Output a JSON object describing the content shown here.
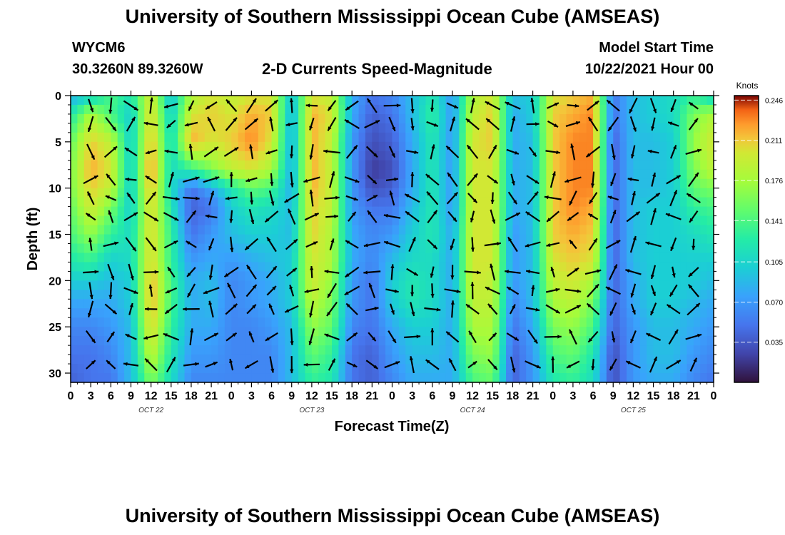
{
  "header": {
    "title": "University of Southern Mississippi Ocean Cube (AMSEAS)",
    "station_id": "WYCM6",
    "station_coords": "30.3260N  89.3260W",
    "chart_title": "2-D Currents Speed-Magnitude",
    "model_start_label": "Model Start Time",
    "model_start_value": "10/22/2021 Hour 00"
  },
  "footer": {
    "title": "University of Southern Mississippi Ocean Cube (AMSEAS)"
  },
  "chart_data": {
    "type": "heatmap",
    "title": "2-D Currents Speed-Magnitude",
    "xlabel": "Forecast Time(Z)",
    "ylabel": "Depth (ft)",
    "x_ticks": [
      "0",
      "3",
      "6",
      "9",
      "12",
      "15",
      "18",
      "21",
      "0",
      "3",
      "6",
      "9",
      "12",
      "15",
      "18",
      "21",
      "0",
      "3",
      "6",
      "9",
      "12",
      "15",
      "18",
      "21",
      "0",
      "3",
      "6",
      "9",
      "12",
      "15",
      "18",
      "21",
      "0"
    ],
    "date_labels": [
      "OCT 22",
      "OCT 23",
      "OCT 24",
      "OCT 25"
    ],
    "y_ticks": [
      "0",
      "5",
      "10",
      "15",
      "20",
      "25",
      "30"
    ],
    "ylim": [
      0,
      31
    ],
    "y_inverted": true,
    "x_range_hours": [
      0,
      96
    ],
    "colorbar": {
      "label": "Knots",
      "ticks": [
        "0.246",
        "0.211",
        "0.176",
        "0.141",
        "0.105",
        "0.070",
        "0.035"
      ],
      "range": [
        0.0,
        0.25
      ]
    },
    "depth_levels_ft": [
      0,
      2,
      5,
      8,
      10,
      12,
      15,
      18,
      20,
      22,
      25,
      28,
      31
    ],
    "time_hours": [
      0,
      3,
      6,
      9,
      12,
      15,
      18,
      21,
      24,
      27,
      30,
      33,
      36,
      39,
      42,
      45,
      48,
      51,
      54,
      57,
      60,
      63,
      66,
      69,
      72,
      75,
      78,
      81,
      84,
      87,
      90,
      93,
      96
    ],
    "speed_knots": [
      [
        0.08,
        0.1,
        0.14,
        0.12,
        0.2,
        0.09,
        0.18,
        0.2,
        0.19,
        0.2,
        0.2,
        0.09,
        0.2,
        0.19,
        0.08,
        0.05,
        0.06,
        0.09,
        0.12,
        0.07,
        0.18,
        0.2,
        0.09,
        0.1,
        0.2,
        0.21,
        0.22,
        0.05,
        0.09,
        0.1,
        0.11,
        0.13,
        0.1
      ],
      [
        0.12,
        0.18,
        0.14,
        0.1,
        0.21,
        0.1,
        0.2,
        0.21,
        0.2,
        0.22,
        0.21,
        0.08,
        0.22,
        0.2,
        0.08,
        0.04,
        0.05,
        0.09,
        0.13,
        0.07,
        0.19,
        0.21,
        0.08,
        0.1,
        0.21,
        0.22,
        0.23,
        0.05,
        0.09,
        0.1,
        0.11,
        0.16,
        0.18
      ],
      [
        0.15,
        0.21,
        0.19,
        0.1,
        0.22,
        0.11,
        0.22,
        0.2,
        0.21,
        0.23,
        0.2,
        0.08,
        0.22,
        0.19,
        0.07,
        0.03,
        0.04,
        0.08,
        0.12,
        0.07,
        0.2,
        0.21,
        0.08,
        0.09,
        0.21,
        0.23,
        0.23,
        0.04,
        0.09,
        0.09,
        0.1,
        0.17,
        0.2
      ],
      [
        0.16,
        0.22,
        0.2,
        0.1,
        0.23,
        0.11,
        0.13,
        0.16,
        0.19,
        0.2,
        0.18,
        0.08,
        0.22,
        0.19,
        0.07,
        0.02,
        0.03,
        0.08,
        0.12,
        0.07,
        0.2,
        0.2,
        0.08,
        0.09,
        0.21,
        0.23,
        0.23,
        0.04,
        0.09,
        0.09,
        0.1,
        0.16,
        0.19
      ],
      [
        0.16,
        0.21,
        0.19,
        0.1,
        0.22,
        0.11,
        0.05,
        0.08,
        0.12,
        0.15,
        0.14,
        0.08,
        0.22,
        0.19,
        0.07,
        0.03,
        0.04,
        0.08,
        0.12,
        0.07,
        0.2,
        0.2,
        0.08,
        0.09,
        0.21,
        0.23,
        0.23,
        0.04,
        0.09,
        0.09,
        0.1,
        0.15,
        0.16
      ],
      [
        0.15,
        0.2,
        0.16,
        0.1,
        0.21,
        0.12,
        0.04,
        0.05,
        0.1,
        0.12,
        0.11,
        0.09,
        0.21,
        0.19,
        0.07,
        0.05,
        0.05,
        0.09,
        0.12,
        0.07,
        0.2,
        0.2,
        0.08,
        0.09,
        0.21,
        0.23,
        0.22,
        0.04,
        0.09,
        0.1,
        0.1,
        0.13,
        0.14
      ],
      [
        0.14,
        0.17,
        0.13,
        0.11,
        0.21,
        0.13,
        0.05,
        0.07,
        0.09,
        0.1,
        0.1,
        0.09,
        0.21,
        0.18,
        0.08,
        0.06,
        0.07,
        0.1,
        0.12,
        0.08,
        0.2,
        0.2,
        0.07,
        0.09,
        0.21,
        0.22,
        0.21,
        0.04,
        0.09,
        0.1,
        0.1,
        0.11,
        0.12
      ],
      [
        0.12,
        0.13,
        0.1,
        0.11,
        0.21,
        0.13,
        0.07,
        0.08,
        0.07,
        0.08,
        0.09,
        0.1,
        0.2,
        0.18,
        0.08,
        0.06,
        0.09,
        0.11,
        0.11,
        0.08,
        0.2,
        0.2,
        0.07,
        0.09,
        0.2,
        0.21,
        0.2,
        0.04,
        0.09,
        0.1,
        0.1,
        0.1,
        0.1
      ],
      [
        0.1,
        0.1,
        0.09,
        0.1,
        0.22,
        0.14,
        0.08,
        0.09,
        0.06,
        0.07,
        0.08,
        0.1,
        0.2,
        0.17,
        0.07,
        0.05,
        0.1,
        0.12,
        0.11,
        0.08,
        0.2,
        0.19,
        0.07,
        0.09,
        0.19,
        0.2,
        0.18,
        0.04,
        0.08,
        0.1,
        0.1,
        0.1,
        0.09
      ],
      [
        0.08,
        0.08,
        0.08,
        0.1,
        0.22,
        0.14,
        0.08,
        0.09,
        0.06,
        0.07,
        0.08,
        0.1,
        0.19,
        0.16,
        0.07,
        0.05,
        0.1,
        0.12,
        0.11,
        0.08,
        0.19,
        0.19,
        0.06,
        0.09,
        0.18,
        0.19,
        0.16,
        0.04,
        0.08,
        0.1,
        0.1,
        0.09,
        0.08
      ],
      [
        0.06,
        0.06,
        0.07,
        0.09,
        0.21,
        0.13,
        0.08,
        0.08,
        0.06,
        0.06,
        0.07,
        0.09,
        0.17,
        0.15,
        0.06,
        0.05,
        0.08,
        0.1,
        0.1,
        0.08,
        0.18,
        0.18,
        0.05,
        0.08,
        0.16,
        0.17,
        0.14,
        0.04,
        0.07,
        0.09,
        0.09,
        0.08,
        0.07
      ],
      [
        0.05,
        0.05,
        0.06,
        0.09,
        0.19,
        0.12,
        0.07,
        0.07,
        0.06,
        0.06,
        0.06,
        0.09,
        0.15,
        0.13,
        0.05,
        0.04,
        0.07,
        0.09,
        0.09,
        0.08,
        0.16,
        0.17,
        0.04,
        0.07,
        0.14,
        0.15,
        0.12,
        0.03,
        0.07,
        0.09,
        0.09,
        0.07,
        0.06
      ],
      [
        0.04,
        0.05,
        0.05,
        0.09,
        0.16,
        0.11,
        0.06,
        0.06,
        0.06,
        0.06,
        0.06,
        0.09,
        0.13,
        0.12,
        0.05,
        0.04,
        0.06,
        0.08,
        0.08,
        0.08,
        0.14,
        0.15,
        0.04,
        0.07,
        0.12,
        0.13,
        0.11,
        0.03,
        0.07,
        0.08,
        0.08,
        0.06,
        0.05
      ]
    ]
  }
}
